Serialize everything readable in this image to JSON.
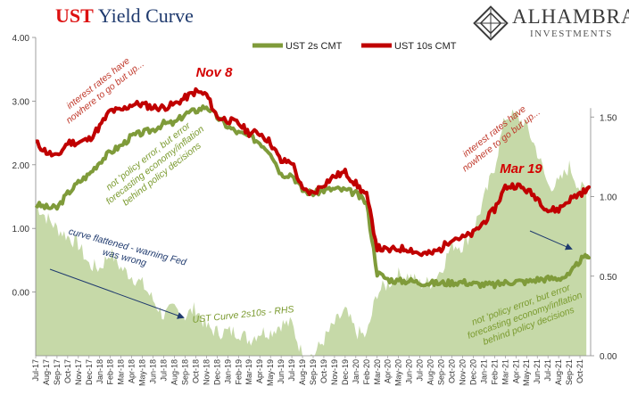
{
  "title": {
    "prefix": "UST",
    "rest": "Yield Curve"
  },
  "logo": {
    "brand": "ALHAMBRA",
    "sub": "INVESTMENTS"
  },
  "colors": {
    "y2": "#7f9b3a",
    "y10": "#c00000",
    "curve_fill": "#c6d9a8",
    "annot_red": "#c0392b",
    "annot_green": "#7a9a2e",
    "annot_blue": "#1f3a6e",
    "highlight": "#d40000"
  },
  "chart_data": {
    "type": "line",
    "x_ticks": [
      "Jul-17",
      "Aug-17",
      "Sep-17",
      "Oct-17",
      "Nov-17",
      "Dec-17",
      "Jan-18",
      "Feb-18",
      "Mar-18",
      "Apr-18",
      "May-18",
      "Jun-18",
      "Jul-18",
      "Aug-18",
      "Sep-18",
      "Oct-18",
      "Nov-18",
      "Dec-18",
      "Jan-19",
      "Feb-19",
      "Mar-19",
      "Apr-19",
      "May-19",
      "Jun-19",
      "Jul-19",
      "Aug-19",
      "Sep-19",
      "Oct-19",
      "Nov-19",
      "Dec-19",
      "Jan-20",
      "Feb-20",
      "Mar-20",
      "Apr-20",
      "May-20",
      "Jun-20",
      "Jul-20",
      "Aug-20",
      "Sep-20",
      "Oct-20",
      "Nov-20",
      "Dec-20",
      "Jan-21",
      "Feb-21",
      "Mar-21",
      "Apr-21",
      "May-21",
      "Jun-21",
      "Jul-21",
      "Aug-21",
      "Sep-21",
      "Oct-21"
    ],
    "left_axis": {
      "ticks": [
        "4.00",
        "3.00",
        "2.00",
        "1.00",
        "0.00"
      ],
      "range": [
        -1.0,
        4.0
      ]
    },
    "right_axis": {
      "ticks": [
        "1.50",
        "1.00",
        "0.50",
        "0.00"
      ],
      "range": [
        0.0,
        2.0
      ]
    },
    "legend": {
      "position": "top",
      "entries": [
        "UST 2s CMT",
        "UST 10s CMT"
      ]
    },
    "series": [
      {
        "name": "UST 2s CMT",
        "axis": "left",
        "x": [
          0,
          1,
          2,
          3,
          4,
          5,
          6,
          7,
          8,
          9,
          10,
          11,
          12,
          13,
          14,
          15,
          16,
          17,
          18,
          19,
          20,
          21,
          22,
          23,
          24,
          25,
          26,
          27,
          28,
          29,
          30,
          31,
          32,
          33,
          34,
          35,
          36,
          37,
          38,
          39,
          40,
          41,
          42,
          43,
          44,
          45,
          46,
          47,
          48,
          49,
          50,
          51,
          51.6
        ],
        "values": [
          1.38,
          1.33,
          1.32,
          1.55,
          1.72,
          1.85,
          2.05,
          2.2,
          2.3,
          2.45,
          2.5,
          2.55,
          2.65,
          2.65,
          2.8,
          2.85,
          2.92,
          2.75,
          2.6,
          2.5,
          2.45,
          2.35,
          2.2,
          1.85,
          1.85,
          1.6,
          1.55,
          1.6,
          1.62,
          1.6,
          1.55,
          1.4,
          0.3,
          0.2,
          0.17,
          0.18,
          0.15,
          0.14,
          0.14,
          0.15,
          0.16,
          0.13,
          0.12,
          0.11,
          0.15,
          0.17,
          0.16,
          0.2,
          0.21,
          0.22,
          0.26,
          0.5,
          0.58
        ]
      },
      {
        "name": "UST 10s CMT",
        "axis": "left",
        "x": [
          0,
          1,
          2,
          3,
          4,
          5,
          6,
          7,
          8,
          9,
          10,
          11,
          12,
          13,
          14,
          15,
          16,
          17,
          18,
          19,
          20,
          21,
          22,
          23,
          24,
          25,
          26,
          27,
          28,
          29,
          30,
          31,
          32,
          33,
          34,
          35,
          36,
          37,
          38,
          39,
          40,
          41,
          42,
          43,
          44,
          45,
          46,
          47,
          48,
          49,
          50,
          51,
          51.6
        ],
        "values": [
          2.35,
          2.2,
          2.12,
          2.35,
          2.35,
          2.4,
          2.6,
          2.85,
          2.85,
          2.95,
          2.95,
          2.9,
          2.9,
          2.95,
          3.05,
          3.15,
          3.1,
          2.75,
          2.7,
          2.65,
          2.5,
          2.5,
          2.35,
          2.05,
          2.05,
          1.6,
          1.55,
          1.7,
          1.82,
          1.88,
          1.7,
          1.52,
          0.7,
          0.65,
          0.68,
          0.68,
          0.6,
          0.6,
          0.68,
          0.85,
          0.85,
          0.92,
          1.1,
          1.3,
          1.65,
          1.68,
          1.6,
          1.48,
          1.28,
          1.3,
          1.45,
          1.55,
          1.62
        ]
      },
      {
        "name": "UST Curve 2s10s - RHS",
        "axis": "right",
        "type": "area",
        "x": [
          0,
          1,
          2,
          3,
          4,
          5,
          6,
          7,
          8,
          9,
          10,
          11,
          12,
          13,
          14,
          15,
          16,
          17,
          18,
          19,
          20,
          21,
          22,
          23,
          24,
          25,
          26,
          27,
          28,
          29,
          30,
          31,
          32,
          33,
          34,
          35,
          36,
          37,
          38,
          39,
          40,
          41,
          42,
          43,
          44,
          45,
          46,
          47,
          48,
          49,
          50,
          51,
          51.6
        ],
        "values": [
          0.95,
          0.87,
          0.8,
          0.75,
          0.7,
          0.57,
          0.55,
          0.65,
          0.55,
          0.5,
          0.45,
          0.35,
          0.25,
          0.3,
          0.25,
          0.3,
          0.18,
          0.15,
          0.15,
          0.15,
          0.1,
          0.15,
          0.15,
          0.2,
          0.2,
          0.0,
          0.0,
          0.1,
          0.2,
          0.28,
          0.15,
          0.12,
          0.4,
          0.45,
          0.51,
          0.5,
          0.45,
          0.46,
          0.54,
          0.7,
          0.69,
          0.79,
          0.98,
          1.19,
          1.5,
          1.51,
          1.44,
          1.28,
          1.07,
          1.08,
          1.19,
          1.05,
          1.04
        ]
      }
    ],
    "annotations": {
      "ir_left": [
        "interest rates have",
        "nowhere to go but up..."
      ],
      "ir_right": [
        "interest rates have",
        "nowhere to go but up..."
      ],
      "nov8": "Nov 8",
      "mar19": "Mar 19",
      "policy_left": [
        "not 'policy error, but error",
        "forecasting economy/inflation",
        "behind policy decisions"
      ],
      "policy_right": [
        "not 'policy error, but error",
        "forecasting economy/inflation",
        "behind policy decisions"
      ],
      "flattened": [
        "curve flattened - warning Fed",
        "was wrong"
      ],
      "curve_label": "UST  Curve 2s10s - RHS"
    }
  }
}
